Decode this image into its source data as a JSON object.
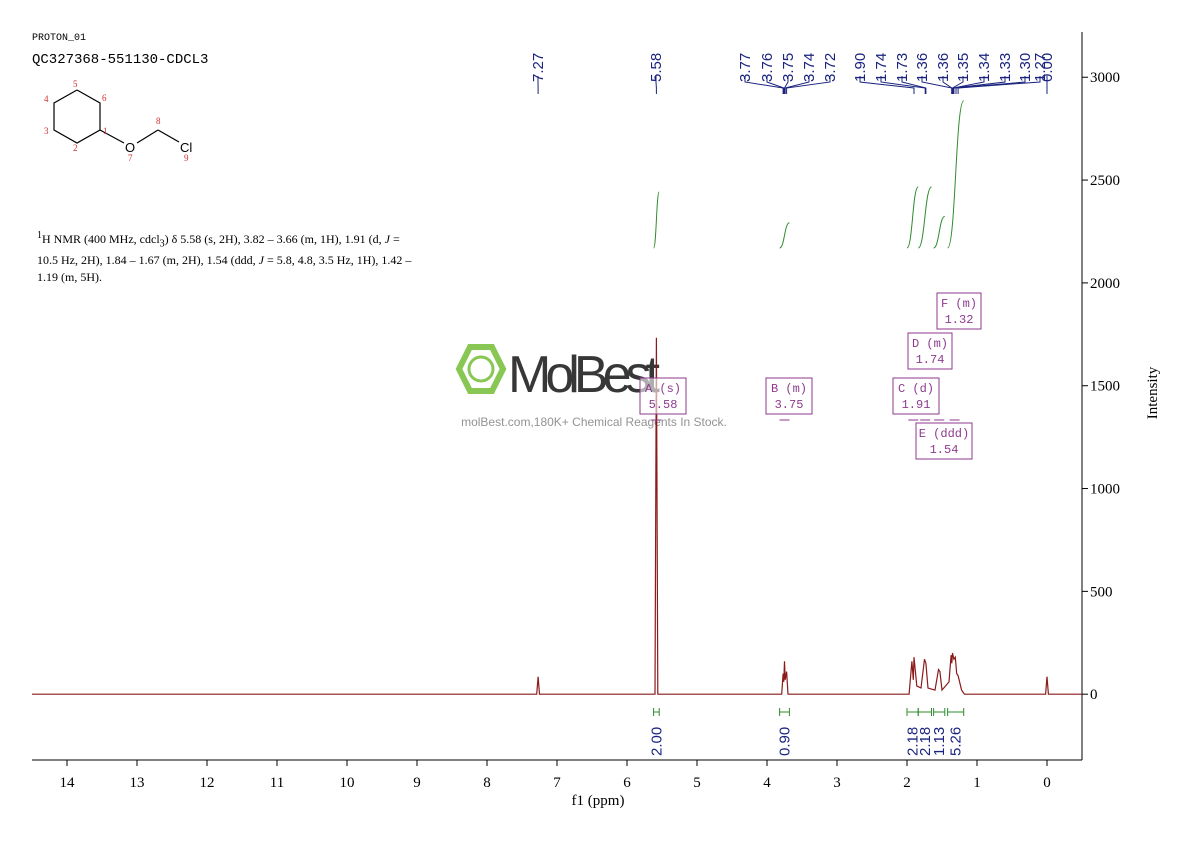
{
  "header": {
    "experiment": "PROTON_01",
    "sample": "QC327368-551130-CDCL3"
  },
  "molecule": {
    "atom_numbers": [
      "1",
      "2",
      "3",
      "4",
      "5",
      "6",
      "7",
      "8",
      "9"
    ],
    "oxygen": "O",
    "chlorine": "Cl"
  },
  "description": [
    "1",
    "H NMR (400 MHz, cdcl",
    "3",
    ") δ 5.58 (s, 2H), 3.82 – 3.66 (m, 1H), 1.91 (d, ",
    "J",
    " = 10.5 Hz, 2H), 1.84 – 1.67 (m, 2H), 1.54 (ddd, ",
    "J",
    " = 5.8, 4.8, 3.5 Hz, 1H), 1.42 – 1.19 (m, 5H)."
  ],
  "watermark": {
    "brand": "MolBest",
    "tagline": "molBest.com,180K+ Chemical Reagents In Stock."
  },
  "chart_data": {
    "type": "nmr",
    "xlabel": "f1 (ppm)",
    "ylabel": "Intensity",
    "xlim": [
      14.5,
      -0.5
    ],
    "ylim": [
      -320,
      3220
    ],
    "xticks": [
      14,
      13,
      12,
      11,
      10,
      9,
      8,
      7,
      6,
      5,
      4,
      3,
      2,
      1,
      0
    ],
    "yticks": [
      0,
      500,
      1000,
      1500,
      2000,
      2500,
      3000
    ],
    "series": [
      {
        "color": "#8b1a1a",
        "x": [
          14.5,
          7.29,
          7.27,
          7.25,
          5.6,
          5.58,
          5.56,
          3.79,
          3.77,
          3.76,
          3.75,
          3.74,
          3.72,
          3.7,
          1.97,
          1.93,
          1.91,
          1.9,
          1.86,
          1.8,
          1.75,
          1.73,
          1.7,
          1.6,
          1.55,
          1.53,
          1.5,
          1.4,
          1.37,
          1.36,
          1.35,
          1.33,
          1.31,
          1.29,
          1.27,
          1.22,
          1.18,
          0.02,
          0,
          -0.02,
          -0.5
        ],
        "values": [
          0,
          0,
          85,
          0,
          0,
          1733,
          0,
          0,
          100,
          60,
          160,
          70,
          110,
          0,
          0,
          160,
          70,
          180,
          40,
          30,
          170,
          150,
          30,
          20,
          120,
          110,
          20,
          60,
          190,
          150,
          200,
          170,
          180,
          100,
          90,
          20,
          0,
          0,
          85,
          0,
          0
        ]
      }
    ],
    "peak_labels": [
      7.27,
      5.58,
      3.77,
      3.76,
      3.75,
      3.74,
      3.72,
      {
        "value": 1.9,
        "label": "1.90"
      },
      1.74,
      1.73,
      1.36,
      1.36,
      1.35,
      1.34,
      1.33,
      {
        "value": 1.3,
        "label": "1.30"
      },
      1.27,
      {
        "value": 0,
        "label": "0.00"
      }
    ],
    "integrals": [
      {
        "from": 5.62,
        "to": 5.54,
        "area": {
          "value": 2,
          "label": "2.00"
        }
      },
      {
        "from": 3.82,
        "to": 3.68,
        "area": {
          "value": 0.9,
          "label": "0.90"
        }
      },
      {
        "from": 2.0,
        "to": 1.84,
        "area": {
          "value": 2.18,
          "label": "2.18"
        }
      },
      {
        "from": 1.84,
        "to": 1.65,
        "area": {
          "value": 2.18,
          "label": "2.18"
        }
      },
      {
        "from": 1.62,
        "to": 1.46,
        "area": {
          "value": 1.13,
          "label": "1.13"
        }
      },
      {
        "from": 1.42,
        "to": 1.19,
        "area": {
          "value": 5.26,
          "label": "5.26"
        }
      }
    ],
    "multiplets": [
      {
        "label": "A (s)",
        "shift": 5.58
      },
      {
        "label": "B (m)",
        "shift": 3.75
      },
      {
        "label": "C (d)",
        "shift": 1.91
      },
      {
        "label": "D (m)",
        "shift": 1.74
      },
      {
        "label": "E (ddd)",
        "shift": 1.54
      },
      {
        "label": "F (m)",
        "shift": 1.32
      }
    ]
  }
}
